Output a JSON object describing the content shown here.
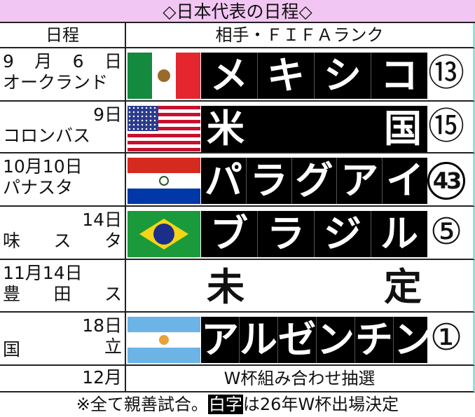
{
  "title": "◇日本代表の日程◇",
  "header": {
    "date": "日程",
    "opponent": "相手・ＦＩＦＡランク"
  },
  "matches": [
    {
      "date": "9 月 6 日",
      "venue": "オークランド",
      "flag": "mexico-flag",
      "name": [
        "メ",
        "キ",
        "シ",
        "コ"
      ],
      "rank": "13",
      "qualified": true
    },
    {
      "date": "9日",
      "venue": "コロンバス",
      "flag": "usa-flag",
      "name": [
        "米",
        "国"
      ],
      "rank": "15",
      "qualified": true
    },
    {
      "date": "10月10日",
      "venue": "パナスタ",
      "flag": "paraguay-flag",
      "name": [
        "パ",
        "ラ",
        "グ",
        "ア",
        "イ"
      ],
      "rank": "43",
      "qualified": true
    },
    {
      "date": "14日",
      "venue": "味 ス タ",
      "flag": "brazil-flag",
      "name": [
        "ブ",
        "ラ",
        "ジ",
        "ル"
      ],
      "rank": "5",
      "qualified": true
    },
    {
      "date": "11月14日",
      "venue": "豊 田 ス",
      "name": [
        "未",
        "定"
      ]
    },
    {
      "date": "18日",
      "venue_a": "国",
      "venue_b": "立",
      "flag": "argentina-flag",
      "name": [
        "ア",
        "ル",
        "ゼ",
        "ン",
        "チ",
        "ン"
      ],
      "rank": "1",
      "qualified": true
    }
  ],
  "draw": {
    "date": "12月",
    "event": "W杯組み合わせ抽選"
  },
  "footnote": {
    "pre": "※全て親善試合。",
    "highlight": "白字",
    "post": "は26年W杯出場決定"
  },
  "colors": {
    "title_bg": "#f2c6f2",
    "box": "#000000"
  }
}
